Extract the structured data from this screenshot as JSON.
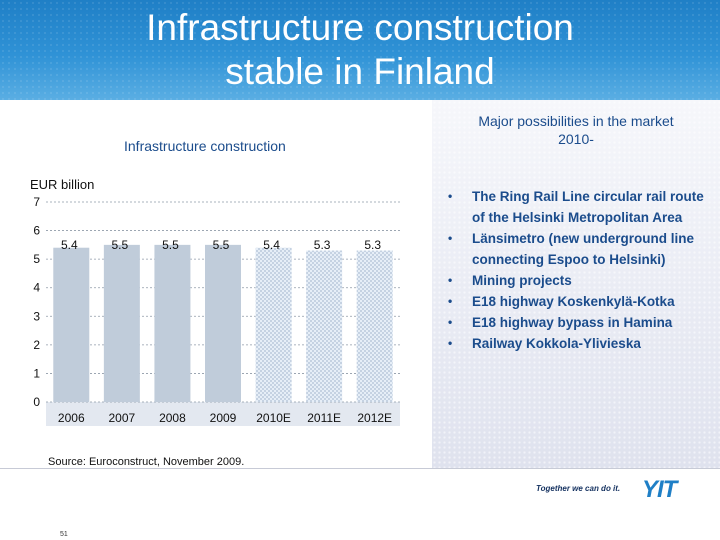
{
  "slide": {
    "title_line1": "Infrastructure construction",
    "title_line2": "stable in Finland",
    "source": "Source: Euroconstruct, November 2009.",
    "page_number": "51",
    "brand_tagline": "Together we can do it.",
    "brand_logo": "YIT",
    "colors": {
      "header": "#2b8fd3",
      "bar": "#c0ccda",
      "bar_forecast_pattern": "#dfe9f3",
      "text_blue": "#1b4c8c"
    }
  },
  "right_panel": {
    "heading_line1": "Major possibilities in the market",
    "heading_line2": "2010-",
    "bullet_symbol": "•",
    "items": [
      "The Ring Rail Line circular rail route of the Helsinki Metropolitan Area",
      "Länsimetro (new underground line connecting Espoo to Helsinki)",
      "Mining projects",
      "E18 highway Koskenkylä-Kotka",
      "E18 highway bypass in Hamina",
      "Railway Kokkola-Ylivieska"
    ]
  },
  "chart_data": {
    "type": "bar",
    "title": "Infrastructure construction",
    "ylabel": "EUR billion",
    "categories": [
      "2006",
      "2007",
      "2008",
      "2009",
      "2010E",
      "2011E",
      "2012E"
    ],
    "values": [
      5.4,
      5.5,
      5.5,
      5.5,
      5.4,
      5.3,
      5.3
    ],
    "value_labels": [
      "5.4",
      "5.5",
      "5.5",
      "5.5",
      "5.4",
      "5.3",
      "5.3"
    ],
    "forecast_categories": [
      "2010E",
      "2011E",
      "2012E"
    ],
    "ylim": [
      0,
      7
    ],
    "yticks": [
      "0",
      "1",
      "2",
      "3",
      "4",
      "5",
      "6",
      "7"
    ],
    "grid": true,
    "legend": "none"
  }
}
